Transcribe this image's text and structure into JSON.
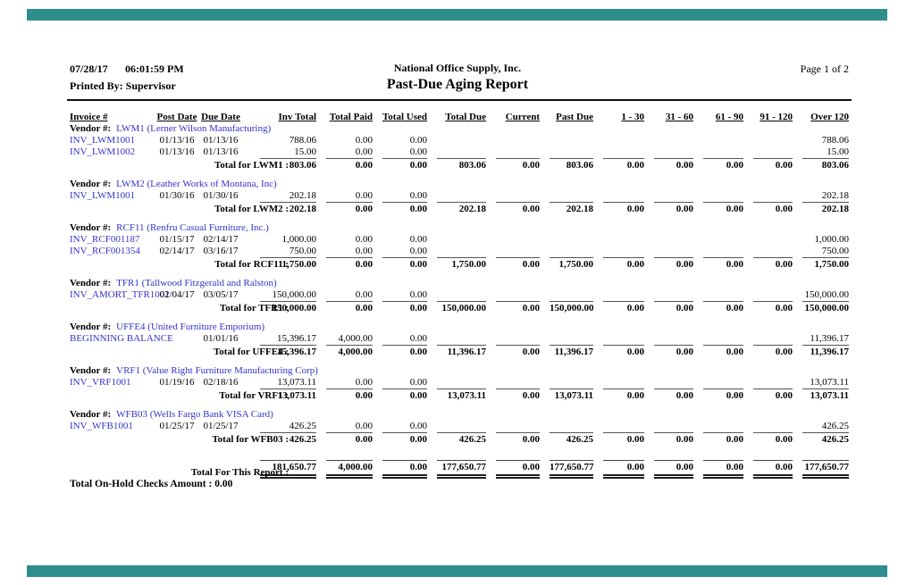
{
  "chrome": {
    "bar_color": "#2e8e8e"
  },
  "header": {
    "date": "07/28/17",
    "time": "06:01:59 PM",
    "printed_by": "Printed By: Supervisor",
    "company": "National Office Supply, Inc.",
    "title": "Past-Due Aging Report",
    "page": "Page 1 of 2"
  },
  "columns": [
    "Invoice #",
    "Post Date",
    "Due Date",
    "Inv Total",
    "Total Paid",
    "Total Used",
    "Total Due",
    "Current",
    "Past Due",
    "1 - 30",
    "31 - 60",
    "61 - 90",
    "91 - 120",
    "Over 120"
  ],
  "vendor_label": "Vendor #:",
  "groups": [
    {
      "vendor": "LWM1 (Lerner Wilson Manufacturing)",
      "rows": [
        [
          "INV_LWM1001",
          "01/13/16",
          "01/13/16",
          "788.06",
          "0.00",
          "0.00",
          "",
          "",
          "",
          "",
          "",
          "",
          "",
          "788.06"
        ],
        [
          "INV_LWM1002",
          "01/13/16",
          "01/13/16",
          "15.00",
          "0.00",
          "0.00",
          "",
          "",
          "",
          "",
          "",
          "",
          "",
          "15.00"
        ]
      ],
      "total_label": "Total for LWM1 :",
      "totals": [
        "803.06",
        "0.00",
        "0.00",
        "803.06",
        "0.00",
        "803.06",
        "0.00",
        "0.00",
        "0.00",
        "0.00",
        "803.06"
      ]
    },
    {
      "vendor": "LWM2 (Leather Works of Montana, Inc)",
      "rows": [
        [
          "INV_LWM1001",
          "01/30/16",
          "01/30/16",
          "202.18",
          "0.00",
          "0.00",
          "",
          "",
          "",
          "",
          "",
          "",
          "",
          "202.18"
        ]
      ],
      "total_label": "Total for LWM2 :",
      "totals": [
        "202.18",
        "0.00",
        "0.00",
        "202.18",
        "0.00",
        "202.18",
        "0.00",
        "0.00",
        "0.00",
        "0.00",
        "202.18"
      ]
    },
    {
      "vendor": "RCF11 (Renfru Casual Furniture, Inc.)",
      "rows": [
        [
          "INV_RCF001187",
          "01/15/17",
          "02/14/17",
          "1,000.00",
          "0.00",
          "0.00",
          "",
          "",
          "",
          "",
          "",
          "",
          "",
          "1,000.00"
        ],
        [
          "INV_RCF001354",
          "02/14/17",
          "03/16/17",
          "750.00",
          "0.00",
          "0.00",
          "",
          "",
          "",
          "",
          "",
          "",
          "",
          "750.00"
        ]
      ],
      "total_label": "Total for RCF11 :",
      "totals": [
        "1,750.00",
        "0.00",
        "0.00",
        "1,750.00",
        "0.00",
        "1,750.00",
        "0.00",
        "0.00",
        "0.00",
        "0.00",
        "1,750.00"
      ]
    },
    {
      "vendor": "TFR1 (Tallwood Fitzgerald and Ralston)",
      "rows": [
        [
          "INV_AMORT_TFR1001",
          "02/04/17",
          "03/05/17",
          "150,000.00",
          "0.00",
          "0.00",
          "",
          "",
          "",
          "",
          "",
          "",
          "",
          "150,000.00"
        ]
      ],
      "total_label": "Total for TFR1 :",
      "totals": [
        "150,000.00",
        "0.00",
        "0.00",
        "150,000.00",
        "0.00",
        "150,000.00",
        "0.00",
        "0.00",
        "0.00",
        "0.00",
        "150,000.00"
      ]
    },
    {
      "vendor": "UFFE4 (United Furniture Emporium)",
      "rows": [
        [
          "BEGINNING BALANCE",
          "",
          "01/01/16",
          "15,396.17",
          "4,000.00",
          "0.00",
          "",
          "",
          "",
          "",
          "",
          "",
          "",
          "11,396.17"
        ]
      ],
      "total_label": "Total for UFFE4 :",
      "totals": [
        "15,396.17",
        "4,000.00",
        "0.00",
        "11,396.17",
        "0.00",
        "11,396.17",
        "0.00",
        "0.00",
        "0.00",
        "0.00",
        "11,396.17"
      ]
    },
    {
      "vendor": "VRF1 (Value Right Furniture Manufacturing Corp)",
      "rows": [
        [
          "INV_VRF1001",
          "01/19/16",
          "02/18/16",
          "13,073.11",
          "0.00",
          "0.00",
          "",
          "",
          "",
          "",
          "",
          "",
          "",
          "13,073.11"
        ]
      ],
      "total_label": "Total for VRF1 :",
      "totals": [
        "13,073.11",
        "0.00",
        "0.00",
        "13,073.11",
        "0.00",
        "13,073.11",
        "0.00",
        "0.00",
        "0.00",
        "0.00",
        "13,073.11"
      ]
    },
    {
      "vendor": "WFB03 (Wells Fargo Bank VISA Card)",
      "rows": [
        [
          "INV_WFB1001",
          "01/25/17",
          "01/25/17",
          "426.25",
          "0.00",
          "0.00",
          "",
          "",
          "",
          "",
          "",
          "",
          "",
          "426.25"
        ]
      ],
      "total_label": "Total for WFB03 :",
      "totals": [
        "426.25",
        "0.00",
        "0.00",
        "426.25",
        "0.00",
        "426.25",
        "0.00",
        "0.00",
        "0.00",
        "0.00",
        "426.25"
      ]
    }
  ],
  "report_total_label": "Total For This Report :",
  "report_totals": [
    "181,650.77",
    "4,000.00",
    "0.00",
    "177,650.77",
    "0.00",
    "177,650.77",
    "0.00",
    "0.00",
    "0.00",
    "0.00",
    "177,650.77"
  ],
  "footer": "Total On-Hold Checks Amount : 0.00"
}
